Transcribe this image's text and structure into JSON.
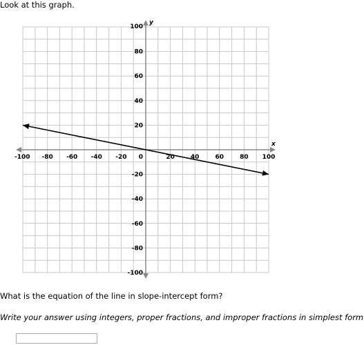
{
  "prompt": "Look at this graph.",
  "graph": {
    "x_axis_label": "x",
    "y_axis_label": "y",
    "x_range": [
      -100,
      100
    ],
    "y_range": [
      -100,
      100
    ],
    "grid_step": 10,
    "label_step": 20,
    "x_tick_labels": [
      "-100",
      "-80",
      "-60",
      "-40",
      "-20",
      "0",
      "20",
      "40",
      "60",
      "80",
      "100"
    ],
    "y_tick_labels": [
      "100",
      "80",
      "60",
      "40",
      "20",
      "-20",
      "-40",
      "-60",
      "-80",
      "-100"
    ],
    "line": {
      "from": [
        -100,
        20
      ],
      "to": [
        100,
        -20
      ]
    },
    "grid_color": "#c8c8c8",
    "axis_color": "#888888",
    "line_color": "#000000"
  },
  "question": "What is the equation of the line in slope-intercept form?",
  "instruction": "Write your answer using integers, proper fractions, and improper fractions in simplest form.",
  "answer": {
    "value": ""
  }
}
